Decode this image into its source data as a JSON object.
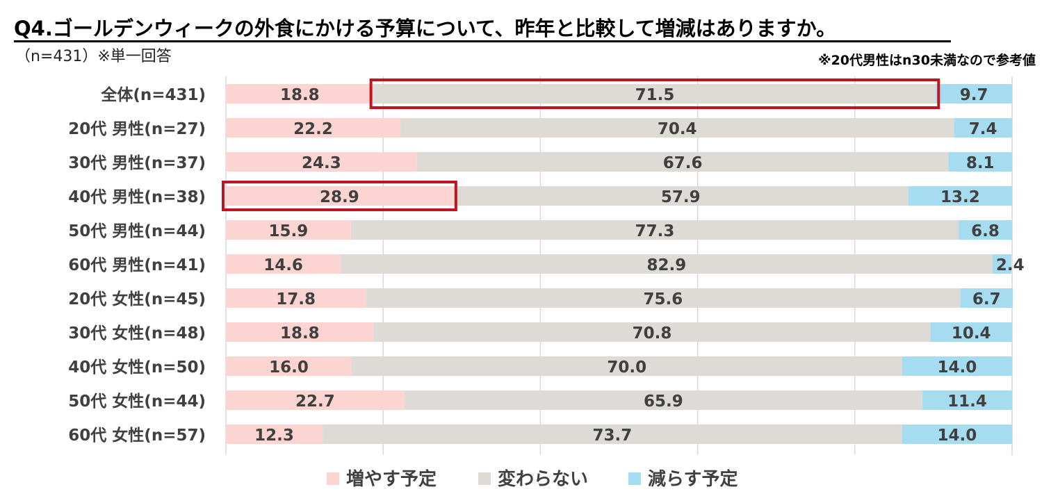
{
  "title": "Q4.ゴールデンウィークの外食にかける予算について、昨年と比較して増減はありますか。",
  "sample_note": "（n=431）※単一回答",
  "reference_note": "※20代男性はn30未満なので参考値",
  "chart_data": {
    "type": "bar",
    "orientation": "horizontal",
    "stacked": "percent",
    "xlim": [
      0,
      100
    ],
    "categories": [
      "全体(n=431)",
      "20代 男性(n=27)",
      "30代 男性(n=37)",
      "40代 男性(n=38)",
      "50代 男性(n=44)",
      "60代 男性(n=41)",
      "20代 女性(n=45)",
      "30代 女性(n=48)",
      "40代 女性(n=50)",
      "50代 女性(n=44)",
      "60代 女性(n=57)"
    ],
    "series": [
      {
        "name": "増やす予定",
        "color": "#fcd5d2",
        "values": [
          18.8,
          22.2,
          24.3,
          28.9,
          15.9,
          14.6,
          17.8,
          18.8,
          16.0,
          22.7,
          12.3
        ]
      },
      {
        "name": "変わらない",
        "color": "#dedad5",
        "values": [
          71.5,
          70.4,
          67.6,
          57.9,
          77.3,
          82.9,
          75.6,
          70.8,
          70.0,
          65.9,
          73.7
        ]
      },
      {
        "name": "減らす予定",
        "color": "#a6dcf0",
        "values": [
          9.7,
          7.4,
          8.1,
          13.2,
          6.8,
          2.4,
          6.7,
          10.4,
          14.0,
          11.4,
          14.0
        ]
      }
    ],
    "highlights": [
      {
        "category": "全体(n=431)",
        "series": "変わらない",
        "color": "#c0141f"
      },
      {
        "category": "40代 男性(n=38)",
        "series": "増やす予定",
        "color": "#c0141f"
      }
    ],
    "gridlines": [
      0,
      20,
      40,
      60,
      80,
      100
    ],
    "legend_position": "bottom"
  }
}
